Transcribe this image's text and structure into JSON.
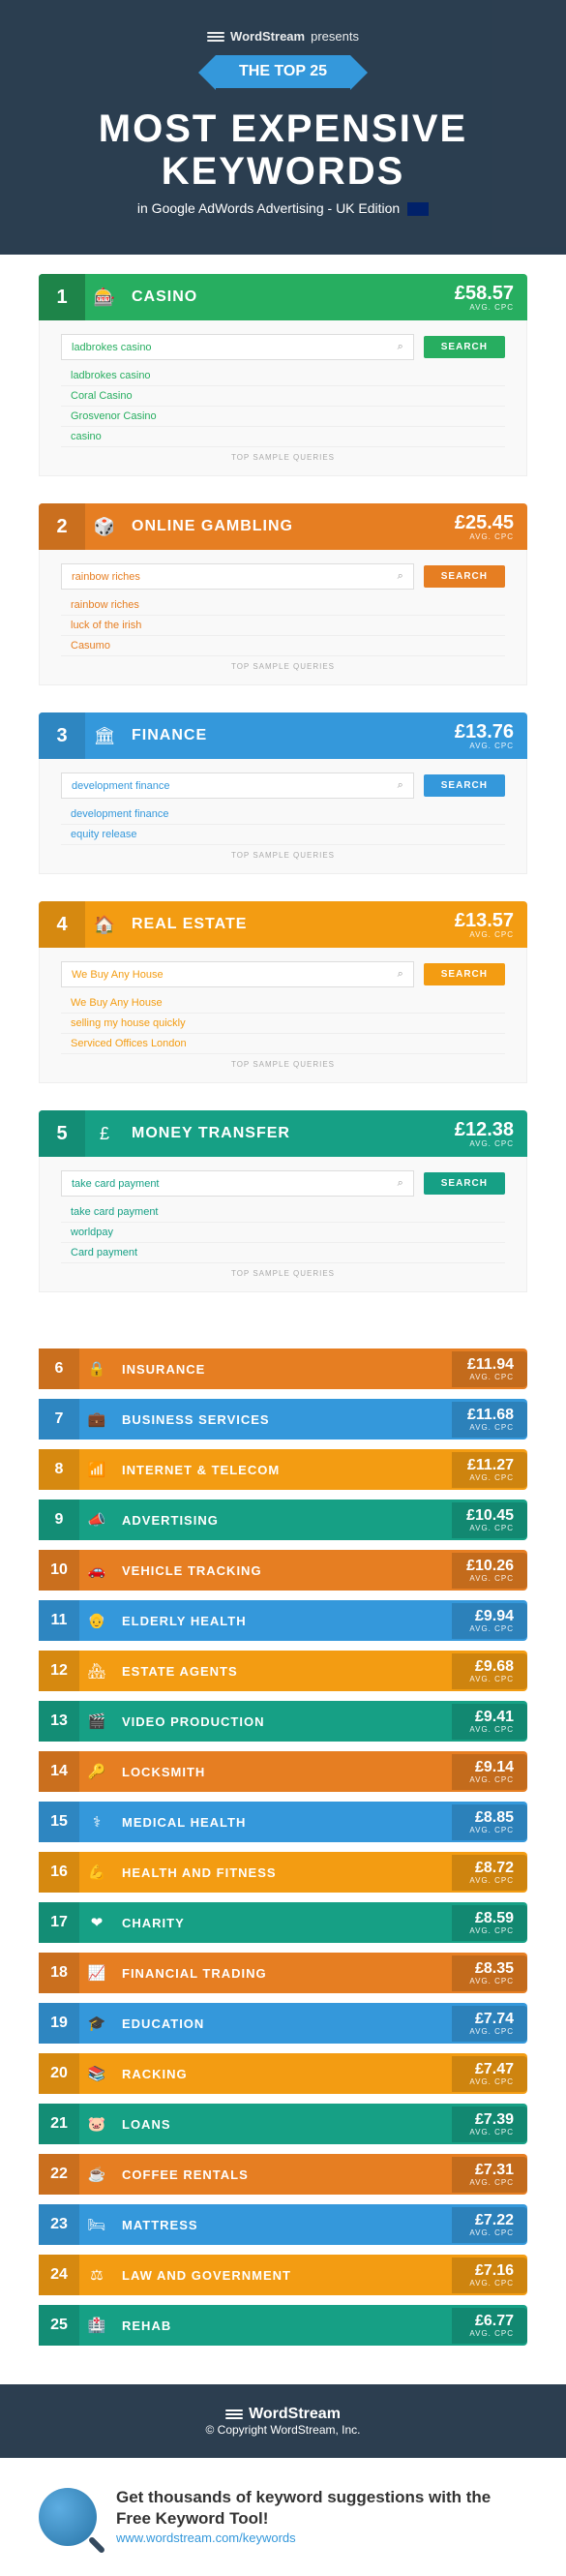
{
  "hero": {
    "brand": "WordStream",
    "presents": "presents",
    "badge": "THE TOP 25",
    "title": "MOST EXPENSIVE KEYWORDS",
    "subtitle": "in Google AdWords Advertising - UK Edition"
  },
  "avg_label": "AVG. CPC",
  "search_label": "SEARCH",
  "sample_label": "TOP SAMPLE QUERIES",
  "top5": [
    {
      "rank": "1",
      "name": "CASINO",
      "cpc": "£58.57",
      "icon": "🎰",
      "bg": "#27ae60",
      "dark": "#1e8449",
      "btn": "#27ae60",
      "qcolor": "#27ae60",
      "queries": [
        "ladbrokes casino",
        "Coral Casino",
        "Grosvenor Casino",
        "casino"
      ]
    },
    {
      "rank": "2",
      "name": "ONLINE GAMBLING",
      "cpc": "£25.45",
      "icon": "🎲",
      "bg": "#e67e22",
      "dark": "#ca6f1e",
      "btn": "#e67e22",
      "qcolor": "#e67e22",
      "queries": [
        "rainbow riches",
        "luck of the irish",
        "Casumo"
      ]
    },
    {
      "rank": "3",
      "name": "FINANCE",
      "cpc": "£13.76",
      "icon": "🏛",
      "bg": "#3498db",
      "dark": "#2e86c1",
      "btn": "#3498db",
      "qcolor": "#3498db",
      "queries": [
        "development finance",
        "equity release"
      ]
    },
    {
      "rank": "4",
      "name": "REAL ESTATE",
      "cpc": "£13.57",
      "icon": "🏠",
      "bg": "#f39c12",
      "dark": "#d68910",
      "btn": "#f39c12",
      "qcolor": "#f39c12",
      "queries": [
        "We Buy Any House",
        "selling my house quickly",
        "Serviced Offices London"
      ]
    },
    {
      "rank": "5",
      "name": "MONEY TRANSFER",
      "cpc": "£12.38",
      "icon": "£",
      "bg": "#16a085",
      "dark": "#138d75",
      "btn": "#16a085",
      "qcolor": "#16a085",
      "queries": [
        "take card payment",
        "worldpay",
        "Card payment"
      ]
    }
  ],
  "rest": [
    {
      "rank": "6",
      "name": "INSURANCE",
      "cpc": "£11.94",
      "icon": "🔒",
      "bg": "#e67e22",
      "dark": "#ca6f1e"
    },
    {
      "rank": "7",
      "name": "BUSINESS SERVICES",
      "cpc": "£11.68",
      "icon": "💼",
      "bg": "#3498db",
      "dark": "#2e86c1"
    },
    {
      "rank": "8",
      "name": "INTERNET & TELECOM",
      "cpc": "£11.27",
      "icon": "📶",
      "bg": "#f39c12",
      "dark": "#d68910"
    },
    {
      "rank": "9",
      "name": "ADVERTISING",
      "cpc": "£10.45",
      "icon": "📣",
      "bg": "#16a085",
      "dark": "#138d75"
    },
    {
      "rank": "10",
      "name": "VEHICLE TRACKING",
      "cpc": "£10.26",
      "icon": "🚗",
      "bg": "#e67e22",
      "dark": "#ca6f1e"
    },
    {
      "rank": "11",
      "name": "ELDERLY HEALTH",
      "cpc": "£9.94",
      "icon": "👴",
      "bg": "#3498db",
      "dark": "#2e86c1"
    },
    {
      "rank": "12",
      "name": "ESTATE AGENTS",
      "cpc": "£9.68",
      "icon": "🏘",
      "bg": "#f39c12",
      "dark": "#d68910"
    },
    {
      "rank": "13",
      "name": "VIDEO PRODUCTION",
      "cpc": "£9.41",
      "icon": "🎬",
      "bg": "#16a085",
      "dark": "#138d75"
    },
    {
      "rank": "14",
      "name": "LOCKSMITH",
      "cpc": "£9.14",
      "icon": "🔑",
      "bg": "#e67e22",
      "dark": "#ca6f1e"
    },
    {
      "rank": "15",
      "name": "MEDICAL HEALTH",
      "cpc": "£8.85",
      "icon": "⚕",
      "bg": "#3498db",
      "dark": "#2e86c1"
    },
    {
      "rank": "16",
      "name": "HEALTH AND FITNESS",
      "cpc": "£8.72",
      "icon": "💪",
      "bg": "#f39c12",
      "dark": "#d68910"
    },
    {
      "rank": "17",
      "name": "CHARITY",
      "cpc": "£8.59",
      "icon": "❤",
      "bg": "#16a085",
      "dark": "#138d75"
    },
    {
      "rank": "18",
      "name": "FINANCIAL TRADING",
      "cpc": "£8.35",
      "icon": "📈",
      "bg": "#e67e22",
      "dark": "#ca6f1e"
    },
    {
      "rank": "19",
      "name": "EDUCATION",
      "cpc": "£7.74",
      "icon": "🎓",
      "bg": "#3498db",
      "dark": "#2e86c1"
    },
    {
      "rank": "20",
      "name": "RACKING",
      "cpc": "£7.47",
      "icon": "📚",
      "bg": "#f39c12",
      "dark": "#d68910"
    },
    {
      "rank": "21",
      "name": "LOANS",
      "cpc": "£7.39",
      "icon": "🐷",
      "bg": "#16a085",
      "dark": "#138d75"
    },
    {
      "rank": "22",
      "name": "COFFEE RENTALS",
      "cpc": "£7.31",
      "icon": "☕",
      "bg": "#e67e22",
      "dark": "#ca6f1e"
    },
    {
      "rank": "23",
      "name": "MATTRESS",
      "cpc": "£7.22",
      "icon": "🛏",
      "bg": "#3498db",
      "dark": "#2e86c1"
    },
    {
      "rank": "24",
      "name": "LAW AND GOVERNMENT",
      "cpc": "£7.16",
      "icon": "⚖",
      "bg": "#f39c12",
      "dark": "#d68910"
    },
    {
      "rank": "25",
      "name": "REHAB",
      "cpc": "£6.77",
      "icon": "🏥",
      "bg": "#16a085",
      "dark": "#138d75"
    }
  ],
  "footer": {
    "brand": "WordStream",
    "copyright": "© Copyright WordStream, Inc.",
    "cta": "Get thousands of keyword suggestions with the Free Keyword Tool!",
    "url": "www.wordstream.com/keywords"
  }
}
